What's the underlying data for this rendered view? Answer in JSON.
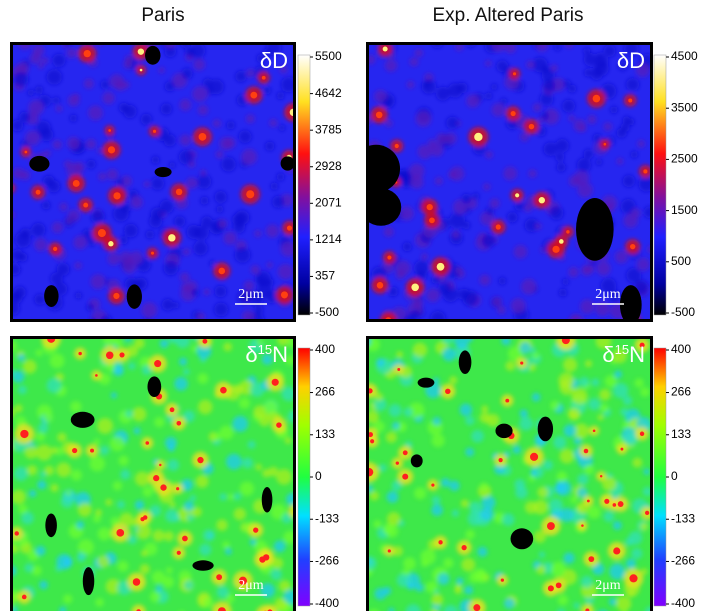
{
  "columns": [
    "Paris",
    "Exp. Altered Paris"
  ],
  "panels": [
    {
      "label": {
        "text": "δD"
      },
      "scale_bar": "2μm",
      "colorbar_ticks": [
        5500,
        4642,
        3785,
        2928,
        2071,
        1214,
        357,
        -500
      ]
    },
    {
      "label": {
        "text": "δD"
      },
      "scale_bar": "2μm",
      "colorbar_ticks": [
        4500,
        3500,
        2500,
        1500,
        500,
        -500
      ]
    },
    {
      "label": {
        "base": "δ",
        "sup": "15",
        "tail": "N"
      },
      "scale_bar": "2μm",
      "colorbar_ticks": [
        400,
        266,
        133,
        0,
        -133,
        -266,
        -400
      ]
    },
    {
      "label": {
        "base": "δ",
        "sup": "15",
        "tail": "N"
      },
      "scale_bar": "2μm",
      "colorbar_ticks": [
        400,
        266,
        133,
        0,
        -133,
        -266,
        -400
      ]
    }
  ]
}
